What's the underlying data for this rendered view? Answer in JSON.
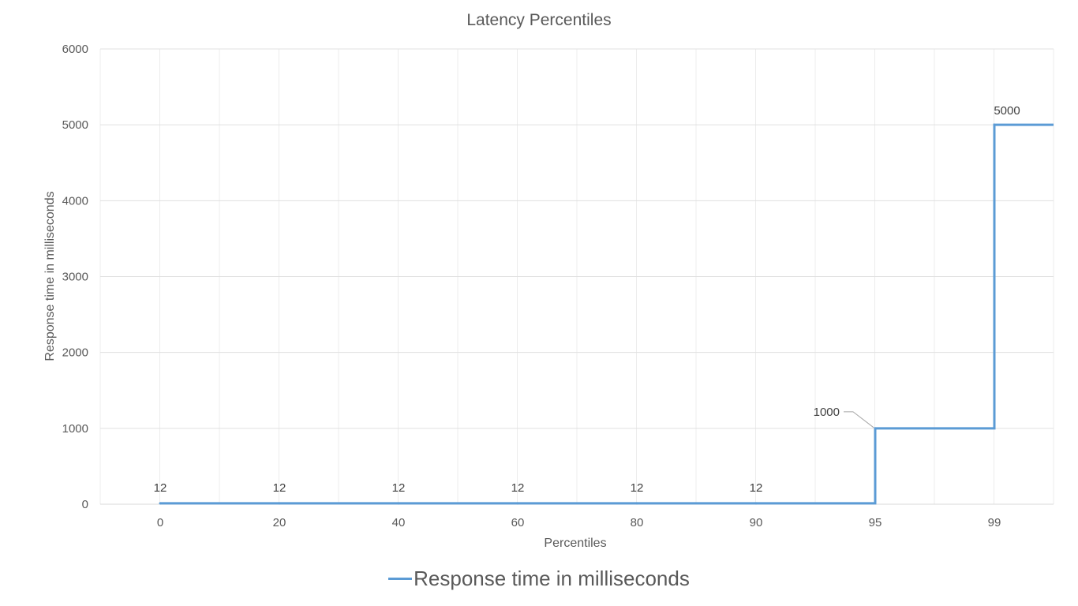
{
  "chart_data": {
    "type": "line",
    "title": "Latency Percentiles",
    "xlabel": "Percentiles",
    "ylabel": "Response time in milliseconds",
    "categories": [
      "0",
      "20",
      "40",
      "60",
      "80",
      "90",
      "95",
      "99"
    ],
    "series": [
      {
        "name": "Response time in milliseconds",
        "values": [
          12,
          12,
          12,
          12,
          12,
          12,
          1000,
          5000
        ],
        "color": "#5b9bd5",
        "step": true
      }
    ],
    "data_labels": [
      "12",
      "12",
      "12",
      "12",
      "12",
      "12",
      "1000",
      "5000"
    ],
    "ylim": [
      0,
      6000
    ],
    "yticks": [
      0,
      1000,
      2000,
      3000,
      4000,
      5000,
      6000
    ],
    "grid": true,
    "legend_position": "bottom"
  }
}
